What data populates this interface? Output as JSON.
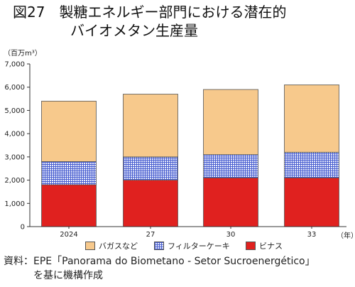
{
  "title": {
    "line1": "図27　製糖エネルギー部門における潜在的",
    "line2": "バイオメタン生産量"
  },
  "y_unit": "（百万m³）",
  "x_unit": "（年）",
  "legend": [
    {
      "label": "バガスなど",
      "series": "bagasse"
    },
    {
      "label": "フィルターケーキ",
      "series": "filter"
    },
    {
      "label": "ビナス",
      "series": "vinasse"
    }
  ],
  "source": {
    "line1": "資料：EPE「Panorama do Biometano - Setor Sucroenergético」",
    "line2": "を基に機構作成"
  },
  "colors": {
    "bagasse": "#f7c98c",
    "filter_bg": "#e8ecfb",
    "filter_hatch": "#4a5fd0",
    "vinasse": "#e0211f",
    "edge": "#555555",
    "axis": "#333333"
  },
  "chart_data": {
    "type": "bar",
    "stacked": true,
    "categories": [
      "2024",
      "27",
      "30",
      "33"
    ],
    "series": [
      {
        "name": "ビナス",
        "key": "vinasse",
        "values": [
          1800,
          2000,
          2100,
          2100
        ]
      },
      {
        "name": "フィルターケーキ",
        "key": "filter",
        "values": [
          1000,
          1000,
          1000,
          1100
        ]
      },
      {
        "name": "バガスなど",
        "key": "bagasse",
        "values": [
          2600,
          2700,
          2800,
          2900
        ]
      }
    ],
    "yticks": [
      "0",
      "1,000",
      "2,000",
      "3,000",
      "4,000",
      "5,000",
      "6,000",
      "7,000"
    ],
    "ylim": [
      0,
      7000
    ],
    "ylabel": "（百万m³）",
    "xlabel": "（年）",
    "grid": false,
    "legend_position": "bottom"
  }
}
